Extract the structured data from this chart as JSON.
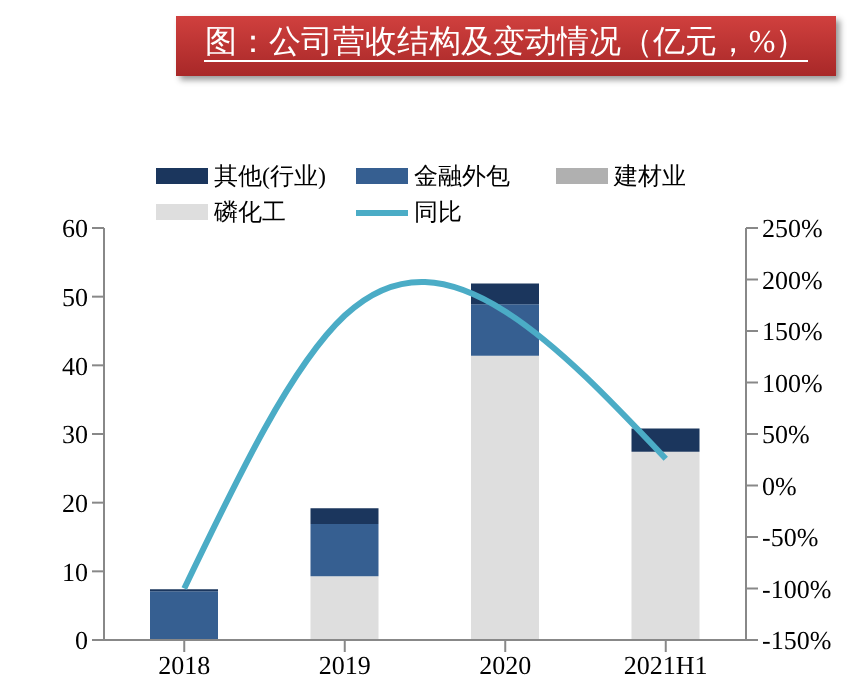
{
  "chart_data": {
    "type": "bar",
    "title": "图：公司营收结构及变动情况（亿元，%）",
    "categories": [
      "2018",
      "2019",
      "2020",
      "2021H1"
    ],
    "stacked": true,
    "series": [
      {
        "name": "磷化工",
        "color": "#dedede",
        "values": [
          0,
          9.3,
          41.4,
          27.4
        ]
      },
      {
        "name": "建材业",
        "color": "#b0b0b0",
        "values": [
          0.1,
          0,
          0,
          0
        ]
      },
      {
        "name": "金融外包",
        "color": "#365f91",
        "values": [
          7.0,
          7.6,
          7.5,
          0
        ]
      },
      {
        "name": "其他(行业)",
        "color": "#1b365d",
        "values": [
          0.3,
          2.3,
          3.0,
          3.4
        ]
      },
      {
        "name": "同比",
        "type": "line",
        "axis": "y2",
        "color": "#4bacc6",
        "values": [
          -100,
          165,
          169,
          26
        ]
      }
    ],
    "ylim": [
      0,
      60
    ],
    "yticks": [
      0,
      10,
      20,
      30,
      40,
      50,
      60
    ],
    "y2lim": [
      -150,
      250
    ],
    "y2ticks": [
      {
        "value": -150,
        "label": "-150%"
      },
      {
        "value": -100,
        "label": "-100%"
      },
      {
        "value": -50,
        "label": "-50%"
      },
      {
        "value": 0,
        "label": "0%"
      },
      {
        "value": 50,
        "label": "50%"
      },
      {
        "value": 100,
        "label": "100%"
      },
      {
        "value": 150,
        "label": "150%"
      },
      {
        "value": 200,
        "label": "200%"
      },
      {
        "value": 250,
        "label": "250%"
      }
    ],
    "grid": false,
    "legend": "top",
    "marker": "none"
  }
}
